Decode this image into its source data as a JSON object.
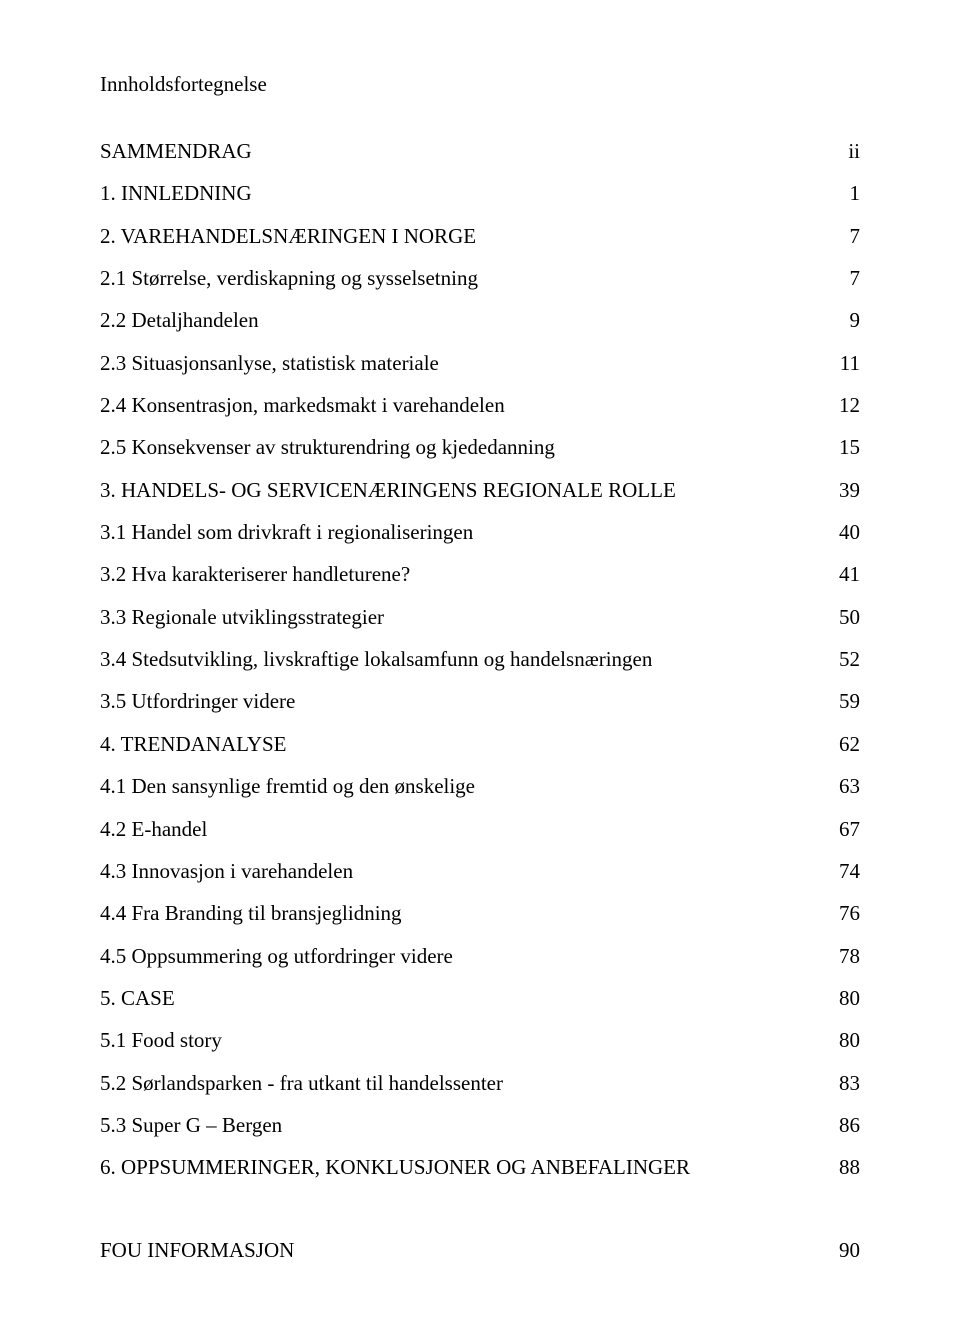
{
  "heading": "Innholdsfortegnelse",
  "toc": [
    {
      "label": "SAMMENDRAG",
      "page": "ii",
      "gap_before": false
    },
    {
      "label": "1. INNLEDNING",
      "page": "1",
      "gap_before": true
    },
    {
      "label": "2. VAREHANDELSNÆRINGEN I NORGE",
      "page": "7",
      "gap_before": true
    },
    {
      "label": "2.1 Størrelse, verdiskapning og sysselsetning",
      "page": "7",
      "gap_before": true
    },
    {
      "label": "2.2 Detaljhandelen",
      "page": "9",
      "gap_before": true
    },
    {
      "label": "2.3 Situasjonsanlyse, statistisk materiale",
      "page": "11",
      "gap_before": true
    },
    {
      "label": "2.4 Konsentrasjon, markedsmakt i varehandelen",
      "page": "12",
      "gap_before": false
    },
    {
      "label": "2.5 Konsekvenser av strukturendring og kjededanning",
      "page": "15",
      "gap_before": true
    },
    {
      "label": "3. HANDELS- OG SERVICENÆRINGENS REGIONALE ROLLE",
      "page": "39",
      "gap_before": true
    },
    {
      "label": "3.1 Handel som drivkraft i regionaliseringen",
      "page": "40",
      "gap_before": true
    },
    {
      "label": "3.2 Hva karakteriserer handleturene?",
      "page": "41",
      "gap_before": false
    },
    {
      "label": "3.3 Regionale utviklingsstrategier",
      "page": "50",
      "gap_before": true
    },
    {
      "label": "3.4 Stedsutvikling, livskraftige lokalsamfunn og handelsnæringen",
      "page": "52",
      "gap_before": true
    },
    {
      "label": "3.5 Utfordringer videre",
      "page": "59",
      "gap_before": true
    },
    {
      "label": "4. TRENDANALYSE",
      "page": "62",
      "gap_before": true
    },
    {
      "label": "4.1 Den sansynlige fremtid og den ønskelige",
      "page": "63",
      "gap_before": true
    },
    {
      "label": "4.2 E-handel",
      "page": "67",
      "gap_before": true
    },
    {
      "label": "4.3 Innovasjon i varehandelen",
      "page": "74",
      "gap_before": true
    },
    {
      "label": "4.4 Fra Branding til bransjeglidning",
      "page": "76",
      "gap_before": true
    },
    {
      "label": "4.5 Oppsummering og utfordringer videre",
      "page": "78",
      "gap_before": true
    },
    {
      "label": "5. CASE",
      "page": "80",
      "gap_before": true
    },
    {
      "label": "5.1 Food story",
      "page": "80",
      "gap_before": true
    },
    {
      "label": "5.2 Sørlandsparken  - fra utkant til handelssenter",
      "page": "83",
      "gap_before": true
    },
    {
      "label": "5.3 Super G – Bergen",
      "page": "86",
      "gap_before": true
    },
    {
      "label": "6. OPPSUMMERINGER, KONKLUSJONER OG ANBEFALINGER",
      "page": "88",
      "gap_before": true
    }
  ],
  "footer": {
    "label": "FOU INFORMASJON",
    "page": "90"
  },
  "colors": {
    "text": "#000000",
    "background": "#ffffff"
  },
  "typography": {
    "font_family": "Times New Roman",
    "body_pt": 16,
    "heading_pt": 16
  }
}
